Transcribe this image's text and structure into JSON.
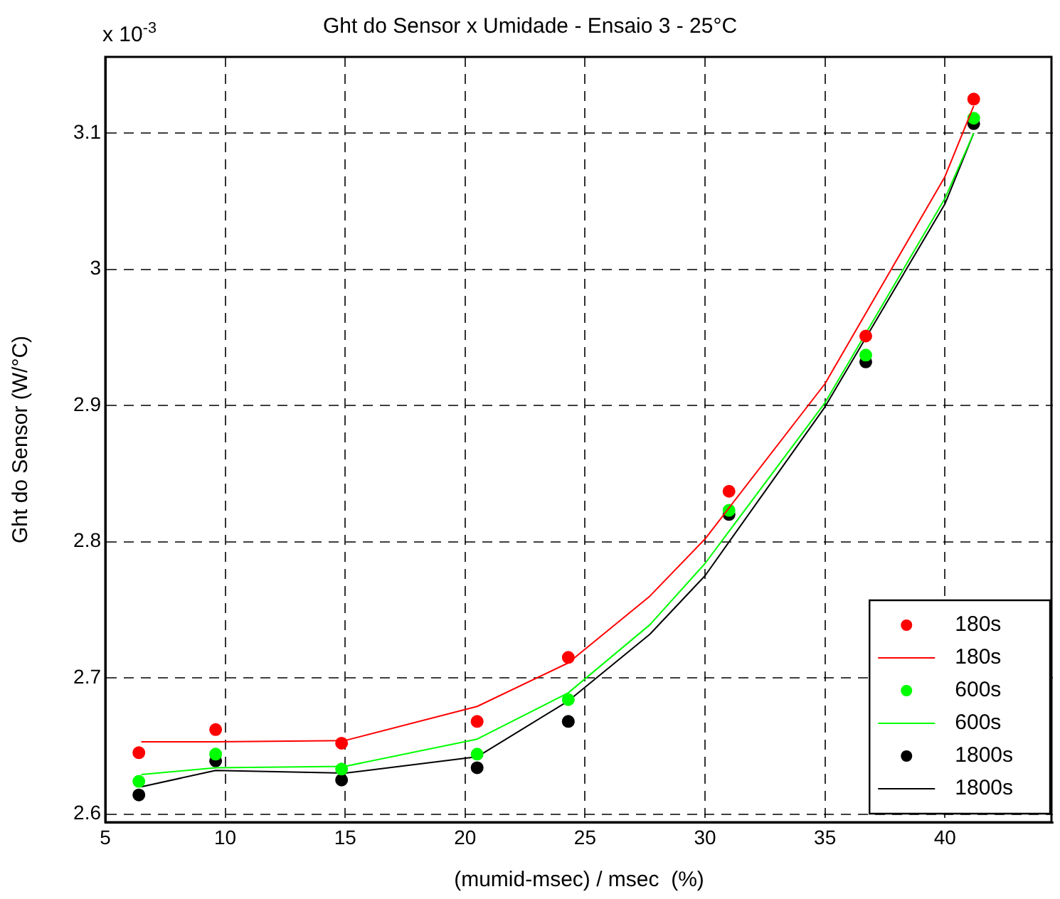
{
  "chart_data": {
    "type": "scatter",
    "title": "Ght do Sensor x Umidade - Ensaio 3 - 25°C",
    "xlabel": "(mumid-msec) / msec  (%)",
    "ylabel": "Ght do Sensor (W/°C)",
    "annotations": [
      "x 10$^{-3}$"
    ],
    "x": [
      6.4,
      9.6,
      14.85,
      20.5,
      24.3,
      31.0,
      36.7,
      41.2
    ],
    "series": [
      {
        "name": "180s",
        "marker": "circle",
        "color": "#ff0000",
        "values": [
          2.645,
          2.662,
          2.652,
          2.668,
          2.715,
          2.837,
          2.951,
          3.125
        ]
      },
      {
        "name": "180s",
        "type": "line",
        "marker": "none",
        "color": "#ff0000",
        "x": [
          6.5,
          9.6,
          15,
          20.5,
          24.3,
          27.7,
          30,
          35,
          40,
          41.2
        ],
        "values": [
          2.653,
          2.653,
          2.654,
          2.679,
          2.711,
          2.76,
          2.802,
          2.916,
          3.068,
          3.12
        ]
      },
      {
        "name": "600s",
        "marker": "circle",
        "color": "#00ff00",
        "values": [
          2.624,
          2.644,
          2.633,
          2.644,
          2.684,
          2.823,
          2.937,
          3.111
        ]
      },
      {
        "name": "600s",
        "type": "line",
        "marker": "none",
        "color": "#00ff00",
        "x": [
          6.5,
          9.6,
          15,
          20.5,
          24.3,
          27.7,
          30,
          35,
          40,
          41.2
        ],
        "values": [
          2.629,
          2.634,
          2.635,
          2.655,
          2.689,
          2.739,
          2.784,
          2.902,
          3.052,
          3.1
        ]
      },
      {
        "name": "1800s",
        "marker": "circle",
        "color": "#000000",
        "values": [
          2.614,
          2.639,
          2.625,
          2.634,
          2.668,
          2.82,
          2.932,
          3.107
        ]
      },
      {
        "name": "1800s",
        "type": "line",
        "marker": "none",
        "color": "#000000",
        "x": [
          6.5,
          9.6,
          15,
          20.5,
          24.3,
          27.7,
          30,
          35,
          40,
          41.2
        ],
        "values": [
          2.62,
          2.632,
          2.63,
          2.642,
          2.683,
          2.732,
          2.775,
          2.899,
          3.048,
          3.1
        ]
      }
    ],
    "xlim": [
      5,
      44.5
    ],
    "ylim": [
      2.594,
      3.156
    ],
    "xticks": [
      5,
      10,
      15,
      20,
      25,
      30,
      35,
      40
    ],
    "yticks": [
      2.6,
      2.7,
      2.8,
      2.9,
      3,
      3.1
    ],
    "grid": true,
    "legend": "bottom right"
  }
}
